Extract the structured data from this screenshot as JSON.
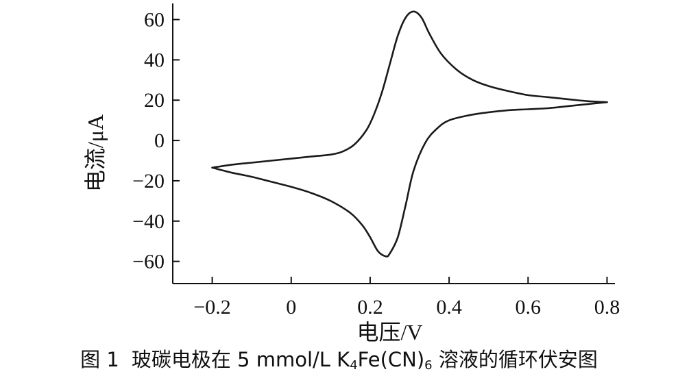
{
  "caption": {
    "prefix": "图 1",
    "text_before": "玻碳电极在 5 mmol/L K",
    "sub1": "4",
    "text_middle": "Fe(CN)",
    "sub2": "6",
    "text_after": " 溶液的循环伏安图"
  },
  "chart_data": {
    "type": "line",
    "xlabel": "电压/V",
    "ylabel": "电流/μA",
    "xlim": [
      -0.3,
      0.82
    ],
    "ylim": [
      -71,
      68
    ],
    "xticks": [
      -0.2,
      0,
      0.2,
      0.4,
      0.6,
      0.8
    ],
    "xtick_labels": [
      "−0.2",
      "0",
      "0.2",
      "0.4",
      "0.6",
      "0.8"
    ],
    "yticks": [
      -60,
      -40,
      -20,
      0,
      20,
      40,
      60
    ],
    "ytick_labels": [
      "−60",
      "−40",
      "−20",
      "0",
      "20",
      "40",
      "60"
    ],
    "grid": false,
    "series": [
      {
        "x": [
          -0.2,
          -0.15,
          -0.1,
          -0.05,
          0,
          0.05,
          0.1,
          0.13,
          0.16,
          0.19,
          0.21,
          0.23,
          0.25,
          0.27,
          0.29,
          0.31,
          0.33,
          0.35,
          0.38,
          0.42,
          0.46,
          0.5,
          0.55,
          0.6,
          0.65,
          0.7,
          0.75,
          0.8
        ],
        "y": [
          -13.5,
          -12,
          -11,
          -10,
          -9,
          -8,
          -7,
          -5.5,
          -2,
          5,
          13,
          24,
          38,
          52,
          61,
          64,
          61,
          53,
          43,
          35,
          30,
          27,
          24.5,
          22.5,
          21.5,
          20.5,
          19.5,
          19
        ]
      },
      {
        "x": [
          0.8,
          0.75,
          0.7,
          0.65,
          0.6,
          0.55,
          0.5,
          0.45,
          0.4,
          0.37,
          0.34,
          0.31,
          0.29,
          0.27,
          0.25,
          0.24,
          0.22,
          0.2,
          0.18,
          0.15,
          0.1,
          0.05,
          0,
          -0.05,
          -0.1,
          -0.15,
          -0.2
        ],
        "y": [
          19,
          18,
          17,
          16,
          15.5,
          15,
          14,
          12.5,
          10,
          6,
          -1,
          -15,
          -32,
          -48,
          -56,
          -57.5,
          -55,
          -48,
          -42,
          -36,
          -30,
          -26,
          -23,
          -20.5,
          -18,
          -16,
          -13.5
        ]
      }
    ]
  }
}
